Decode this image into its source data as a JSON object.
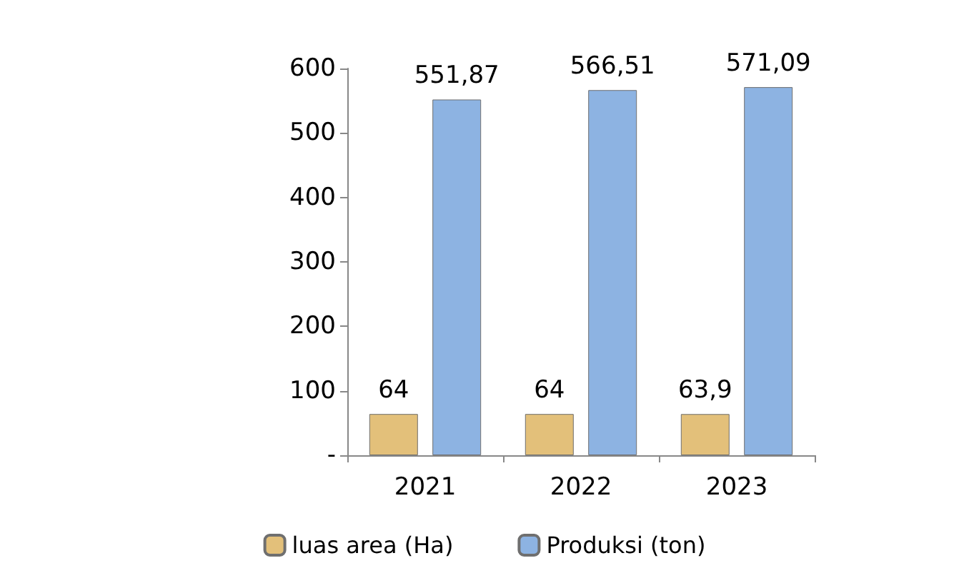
{
  "chart_data": {
    "type": "bar",
    "categories": [
      "2021",
      "2022",
      "2023"
    ],
    "series": [
      {
        "name": "luas area (Ha)",
        "color": "#e3c07a",
        "values": [
          64,
          64,
          63.9
        ],
        "value_labels": [
          "64",
          "64",
          "63,9"
        ]
      },
      {
        "name": "Produksi (ton)",
        "color": "#8db3e2",
        "values": [
          551.87,
          566.51,
          571.09
        ],
        "value_labels": [
          "551,87",
          "566,51",
          "571,09"
        ]
      }
    ],
    "ylim": [
      0,
      600
    ],
    "yticks": [
      {
        "value": 0,
        "label": "-"
      },
      100,
      200,
      300,
      400,
      500,
      600
    ],
    "grid": false,
    "legend": "bottom"
  }
}
